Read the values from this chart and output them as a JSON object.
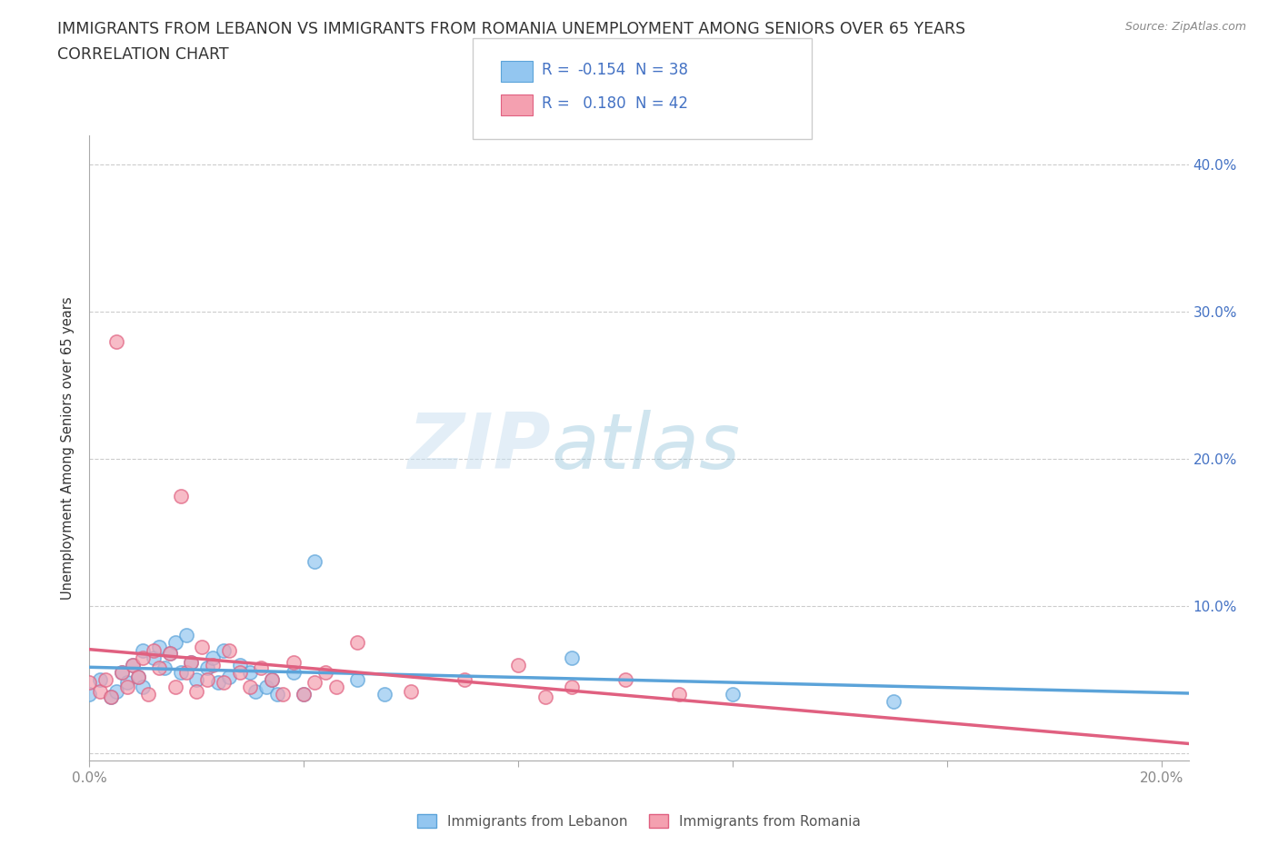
{
  "title_line1": "IMMIGRANTS FROM LEBANON VS IMMIGRANTS FROM ROMANIA UNEMPLOYMENT AMONG SENIORS OVER 65 YEARS",
  "title_line2": "CORRELATION CHART",
  "source": "Source: ZipAtlas.com",
  "ylabel": "Unemployment Among Seniors over 65 years",
  "xlim": [
    0.0,
    0.205
  ],
  "ylim": [
    -0.005,
    0.42
  ],
  "x_ticks": [
    0.0,
    0.04,
    0.08,
    0.12,
    0.16,
    0.2
  ],
  "y_ticks": [
    0.0,
    0.1,
    0.2,
    0.3,
    0.4
  ],
  "x_tick_labels": [
    "0.0%",
    "",
    "",
    "",
    "",
    "20.0%"
  ],
  "y_tick_labels_right": [
    "",
    "10.0%",
    "20.0%",
    "30.0%",
    "40.0%"
  ],
  "watermark_zip": "ZIP",
  "watermark_atlas": "atlas",
  "lebanon_color": "#93c6f0",
  "lebanon_edge": "#5ba3d9",
  "romania_color": "#f4a0b0",
  "romania_edge": "#e06080",
  "lebanon_R": -0.154,
  "lebanon_N": 38,
  "romania_R": 0.18,
  "romania_N": 42,
  "lebanon_scatter_x": [
    0.0,
    0.002,
    0.004,
    0.005,
    0.006,
    0.007,
    0.008,
    0.009,
    0.01,
    0.01,
    0.012,
    0.013,
    0.014,
    0.015,
    0.016,
    0.017,
    0.018,
    0.019,
    0.02,
    0.022,
    0.023,
    0.024,
    0.025,
    0.026,
    0.028,
    0.03,
    0.031,
    0.033,
    0.034,
    0.035,
    0.038,
    0.04,
    0.042,
    0.05,
    0.055,
    0.09,
    0.12,
    0.15
  ],
  "lebanon_scatter_y": [
    0.04,
    0.05,
    0.038,
    0.042,
    0.055,
    0.048,
    0.06,
    0.052,
    0.07,
    0.045,
    0.065,
    0.072,
    0.058,
    0.068,
    0.075,
    0.055,
    0.08,
    0.062,
    0.05,
    0.058,
    0.065,
    0.048,
    0.07,
    0.052,
    0.06,
    0.055,
    0.042,
    0.045,
    0.05,
    0.04,
    0.055,
    0.04,
    0.13,
    0.05,
    0.04,
    0.065,
    0.04,
    0.035
  ],
  "romania_scatter_x": [
    0.0,
    0.002,
    0.003,
    0.004,
    0.005,
    0.006,
    0.007,
    0.008,
    0.009,
    0.01,
    0.011,
    0.012,
    0.013,
    0.015,
    0.016,
    0.017,
    0.018,
    0.019,
    0.02,
    0.021,
    0.022,
    0.023,
    0.025,
    0.026,
    0.028,
    0.03,
    0.032,
    0.034,
    0.036,
    0.038,
    0.04,
    0.042,
    0.044,
    0.046,
    0.05,
    0.06,
    0.07,
    0.08,
    0.085,
    0.09,
    0.1,
    0.11
  ],
  "romania_scatter_y": [
    0.048,
    0.042,
    0.05,
    0.038,
    0.28,
    0.055,
    0.045,
    0.06,
    0.052,
    0.065,
    0.04,
    0.07,
    0.058,
    0.068,
    0.045,
    0.175,
    0.055,
    0.062,
    0.042,
    0.072,
    0.05,
    0.06,
    0.048,
    0.07,
    0.055,
    0.045,
    0.058,
    0.05,
    0.04,
    0.062,
    0.04,
    0.048,
    0.055,
    0.045,
    0.075,
    0.042,
    0.05,
    0.06,
    0.038,
    0.045,
    0.05,
    0.04
  ],
  "grid_color": "#cccccc",
  "background_color": "#ffffff",
  "title_color": "#333333",
  "axis_color": "#aaaaaa",
  "legend_text_color": "#4472c4",
  "right_axis_color": "#4472c4"
}
